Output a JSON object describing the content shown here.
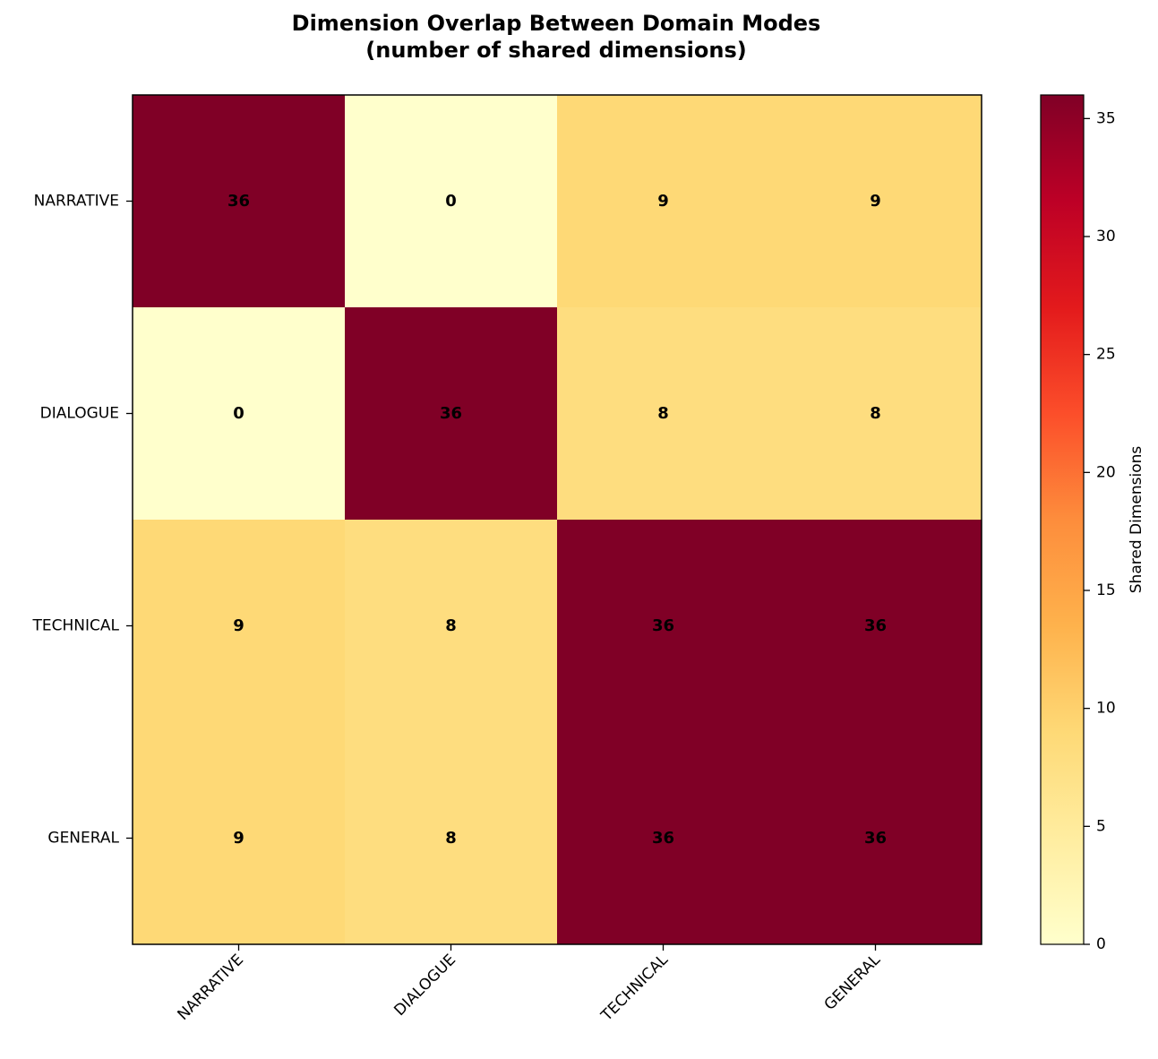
{
  "chart_data": {
    "type": "heatmap",
    "title": "Dimension Overlap Between Domain Modes",
    "subtitle": "(number of shared dimensions)",
    "rows": [
      "NARRATIVE",
      "DIALOGUE",
      "TECHNICAL",
      "GENERAL"
    ],
    "columns": [
      "NARRATIVE",
      "DIALOGUE",
      "TECHNICAL",
      "GENERAL"
    ],
    "values": [
      [
        36,
        0,
        9,
        9
      ],
      [
        0,
        36,
        8,
        8
      ],
      [
        9,
        8,
        36,
        36
      ],
      [
        9,
        8,
        36,
        36
      ]
    ],
    "colorbar": {
      "label": "Shared Dimensions",
      "range": [
        0,
        36
      ],
      "ticks": [
        0,
        5,
        10,
        15,
        20,
        25,
        30,
        35
      ],
      "colormap": "YlOrRd"
    },
    "grid": false
  }
}
